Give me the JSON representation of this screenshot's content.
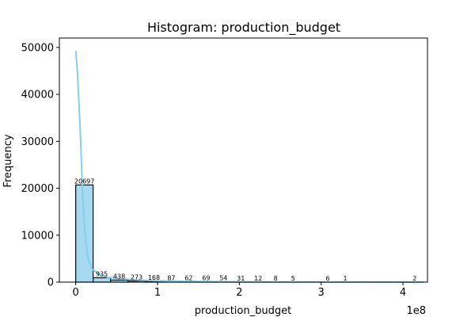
{
  "chart_data": {
    "type": "bar",
    "title": "Histogram: production_budget",
    "xlabel": "production_budget",
    "ylabel": "Frequency",
    "x_offset_text": "1e8",
    "xlim": [
      -0.2,
      4.3
    ],
    "ylim": [
      0,
      52000
    ],
    "x_ticks": [
      0,
      1,
      2,
      3,
      4
    ],
    "y_ticks": [
      0,
      10000,
      20000,
      30000,
      40000,
      50000
    ],
    "bin_width": 0.2125,
    "bins": [
      {
        "start": 0.0,
        "count": 20697
      },
      {
        "start": 0.2125,
        "count": 935
      },
      {
        "start": 0.425,
        "count": 438
      },
      {
        "start": 0.6375,
        "count": 273
      },
      {
        "start": 0.85,
        "count": 168
      },
      {
        "start": 1.0625,
        "count": 87
      },
      {
        "start": 1.275,
        "count": 62
      },
      {
        "start": 1.4875,
        "count": 69
      },
      {
        "start": 1.7,
        "count": 54
      },
      {
        "start": 1.9125,
        "count": 31
      },
      {
        "start": 2.125,
        "count": 12
      },
      {
        "start": 2.3375,
        "count": 8
      },
      {
        "start": 2.55,
        "count": 5
      },
      {
        "start": 2.7625,
        "count": 0
      },
      {
        "start": 2.975,
        "count": 6
      },
      {
        "start": 3.1875,
        "count": 1
      },
      {
        "start": 3.4,
        "count": 0
      },
      {
        "start": 3.6125,
        "count": 0
      },
      {
        "start": 3.825,
        "count": 0
      },
      {
        "start": 4.0375,
        "count": 2
      }
    ],
    "kde_points": [
      [
        0.0,
        49300
      ],
      [
        0.02,
        45000
      ],
      [
        0.04,
        38000
      ],
      [
        0.06,
        30000
      ],
      [
        0.08,
        21000
      ],
      [
        0.1,
        14000
      ],
      [
        0.12,
        9000
      ],
      [
        0.15,
        5000
      ],
      [
        0.2,
        2800
      ],
      [
        0.3,
        1500
      ],
      [
        0.4,
        1000
      ],
      [
        0.6,
        650
      ],
      [
        0.8,
        420
      ],
      [
        1.0,
        280
      ],
      [
        1.3,
        180
      ],
      [
        1.6,
        120
      ],
      [
        2.0,
        70
      ],
      [
        2.5,
        40
      ],
      [
        3.0,
        20
      ],
      [
        3.5,
        10
      ],
      [
        4.0,
        5
      ],
      [
        4.25,
        3
      ]
    ],
    "bar_color": "#87CEEB",
    "kde_color": "#87CEEB",
    "grid": false
  }
}
